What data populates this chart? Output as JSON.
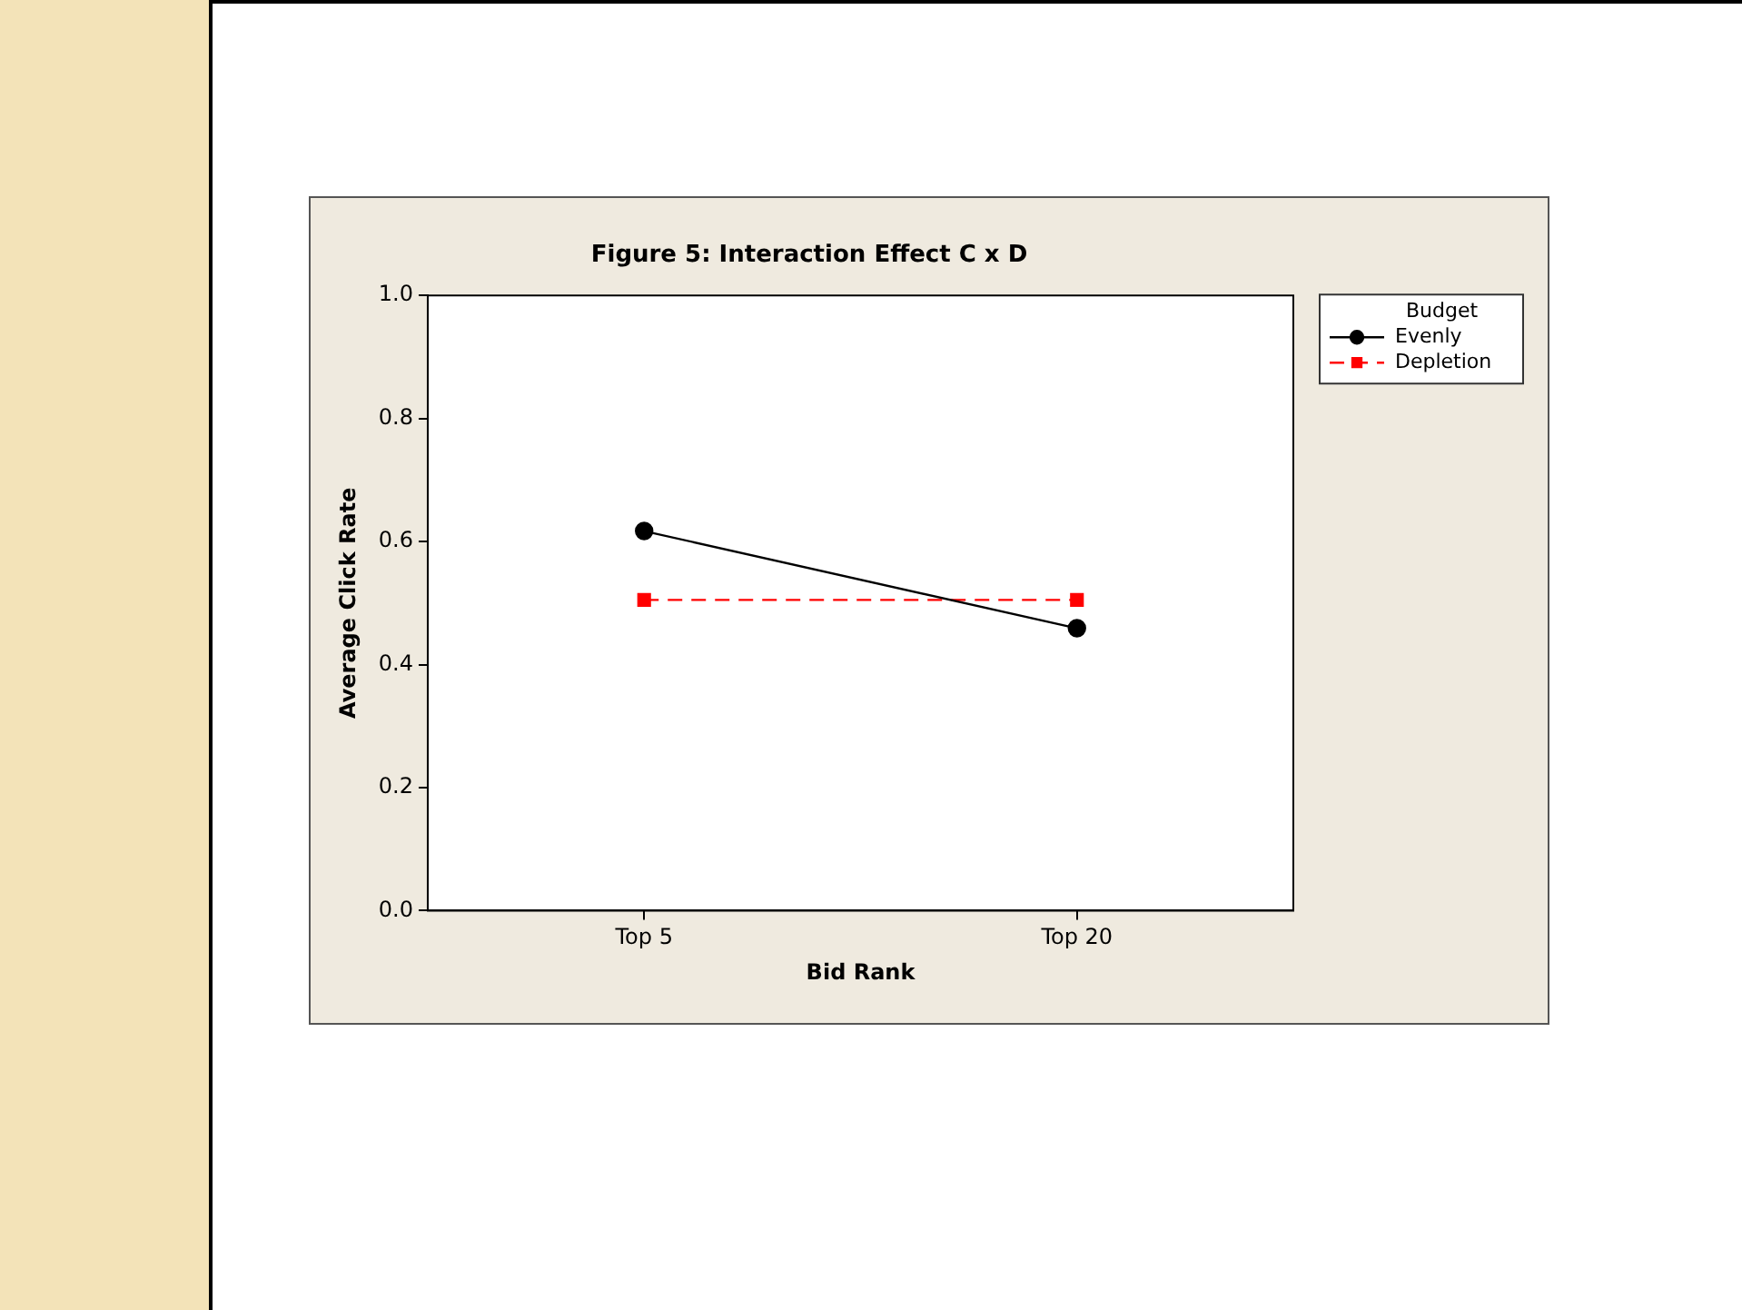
{
  "chart_data": {
    "type": "line",
    "title": "Figure 5: Interaction Effect C x D",
    "xlabel": "Bid Rank",
    "ylabel": "Average Click Rate",
    "legend_title": "Budget",
    "categories": [
      "Top 5",
      "Top 20"
    ],
    "series": [
      {
        "name": "Evenly",
        "color": "#000000",
        "values": [
          0.617,
          0.459
        ],
        "marker": "circle",
        "line_style": "solid"
      },
      {
        "name": "Depletion",
        "color": "#ff0000",
        "values": [
          0.505,
          0.505
        ],
        "marker": "square",
        "line_style": "dashed"
      }
    ],
    "ylim": [
      0,
      1
    ],
    "yticks": [
      {
        "value": 0,
        "label": "0.0"
      },
      {
        "value": 0.2,
        "label": "0.2"
      },
      {
        "value": 0.4,
        "label": "0.4"
      },
      {
        "value": 0.6,
        "label": "0.6"
      },
      {
        "value": 0.8,
        "label": "0.8"
      },
      {
        "value": 1,
        "label": "1.0"
      }
    ],
    "grid": false,
    "legend": "top right"
  }
}
